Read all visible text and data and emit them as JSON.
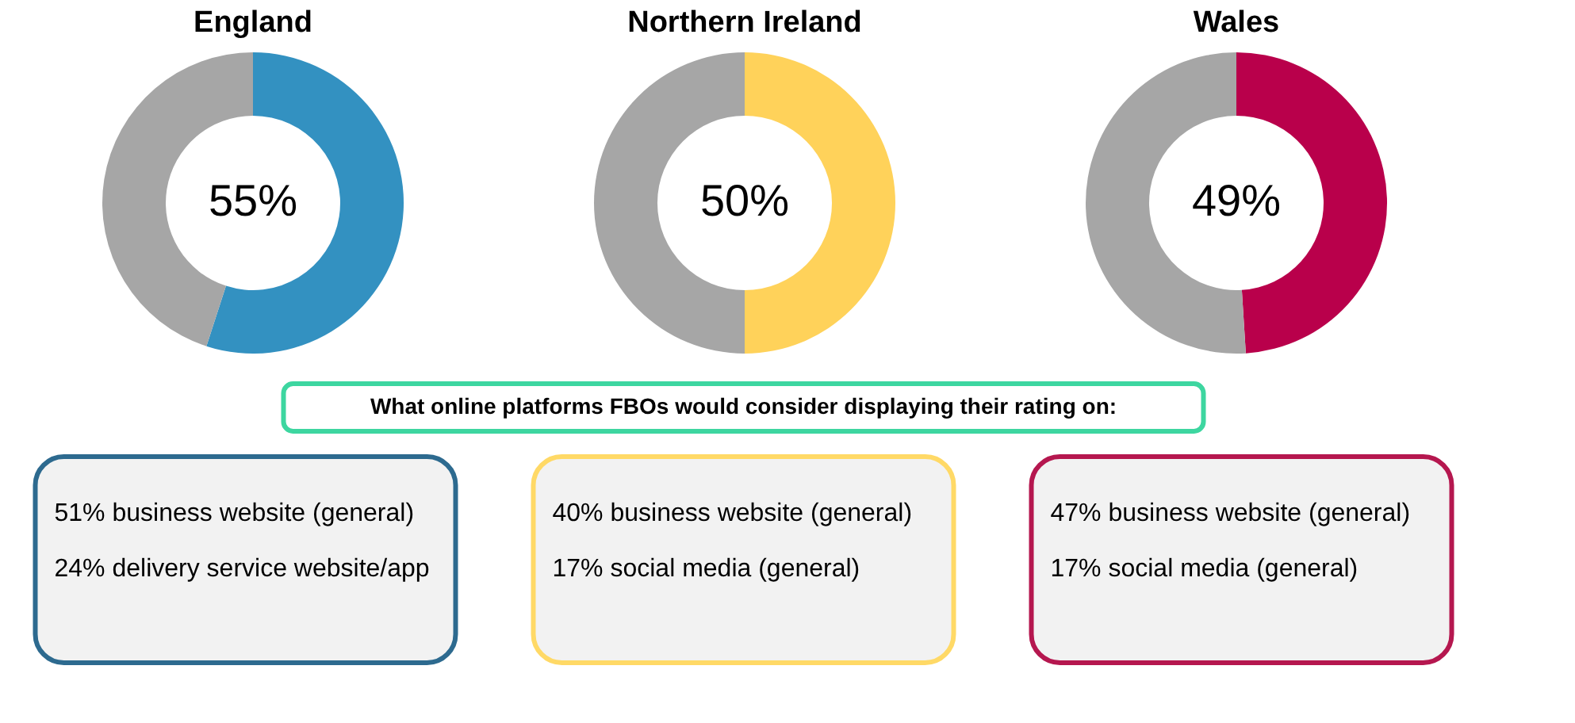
{
  "chart_data": [
    {
      "type": "donut",
      "title": "England",
      "categories": [
        null,
        null
      ],
      "values": [
        55,
        45
      ],
      "colors": [
        "#3391c1",
        "#a6a6a6"
      ],
      "annotations": [
        "55%"
      ]
    },
    {
      "type": "donut",
      "title": "Northern Ireland",
      "categories": [
        null,
        null
      ],
      "values": [
        50,
        50
      ],
      "colors": [
        "#ffd25a",
        "#a6a6a6"
      ],
      "annotations": [
        "50%"
      ]
    },
    {
      "type": "donut",
      "title": "Wales",
      "categories": [
        null,
        null
      ],
      "values": [
        49,
        51
      ],
      "colors": [
        "#b9004b",
        "#a6a6a6"
      ],
      "annotations": [
        "49%"
      ]
    },
    {
      "type": "other",
      "title": "What online platforms FBOs would consider displaying their rating on:",
      "color": "#3dd6a0"
    },
    {
      "type": "other",
      "color": "#2d6a8f",
      "annotations": [
        "51% business website (general)",
        "24% delivery service website/app"
      ]
    },
    {
      "type": "other",
      "color": "#ffd966",
      "annotations": [
        "40% business website (general)",
        "17% social media (general)"
      ]
    },
    {
      "type": "other",
      "color": "#b5174f",
      "annotations": [
        "47% business website (general)",
        "17% social media (general)"
      ]
    }
  ]
}
